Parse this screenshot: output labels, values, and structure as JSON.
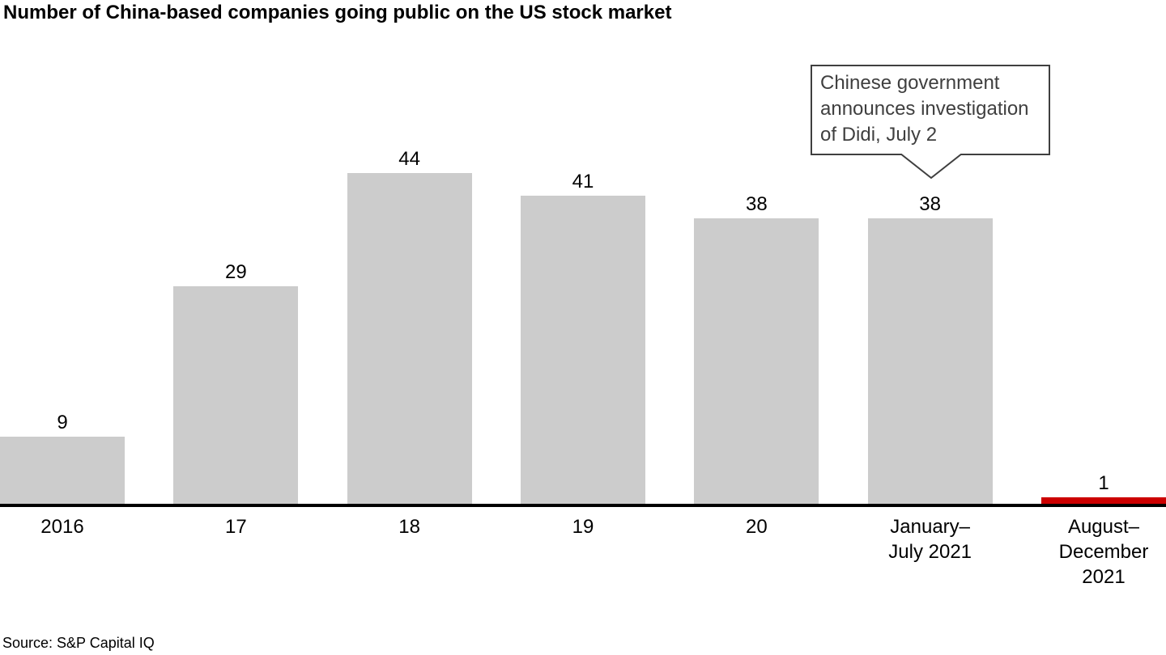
{
  "chart_data": {
    "type": "bar",
    "title": "Number of China-based companies going public on the US stock market",
    "categories": [
      "2016",
      "17",
      "18",
      "19",
      "20",
      "January–\nJuly 2021",
      "August–\nDecember\n2021"
    ],
    "values": [
      9,
      29,
      44,
      41,
      38,
      38,
      1
    ],
    "bar_colors": [
      "#cccccc",
      "#cccccc",
      "#cccccc",
      "#cccccc",
      "#cccccc",
      "#cccccc",
      "#cc0000"
    ],
    "default_bar_color": "#cccccc",
    "highlight_bar_color": "#cc0000",
    "axis_color": "#000000",
    "ylim": [
      0,
      44
    ],
    "grid": false,
    "legend": false,
    "value_labels_shown": true,
    "annotation": {
      "text": "Chinese government\nannounces investigation\nof Didi, July 2",
      "target_category_index": 5,
      "border_color": "#3f3f3f",
      "text_color": "#3f3f3f",
      "background": "#ffffff"
    },
    "source": "Source: S&P Capital IQ"
  }
}
